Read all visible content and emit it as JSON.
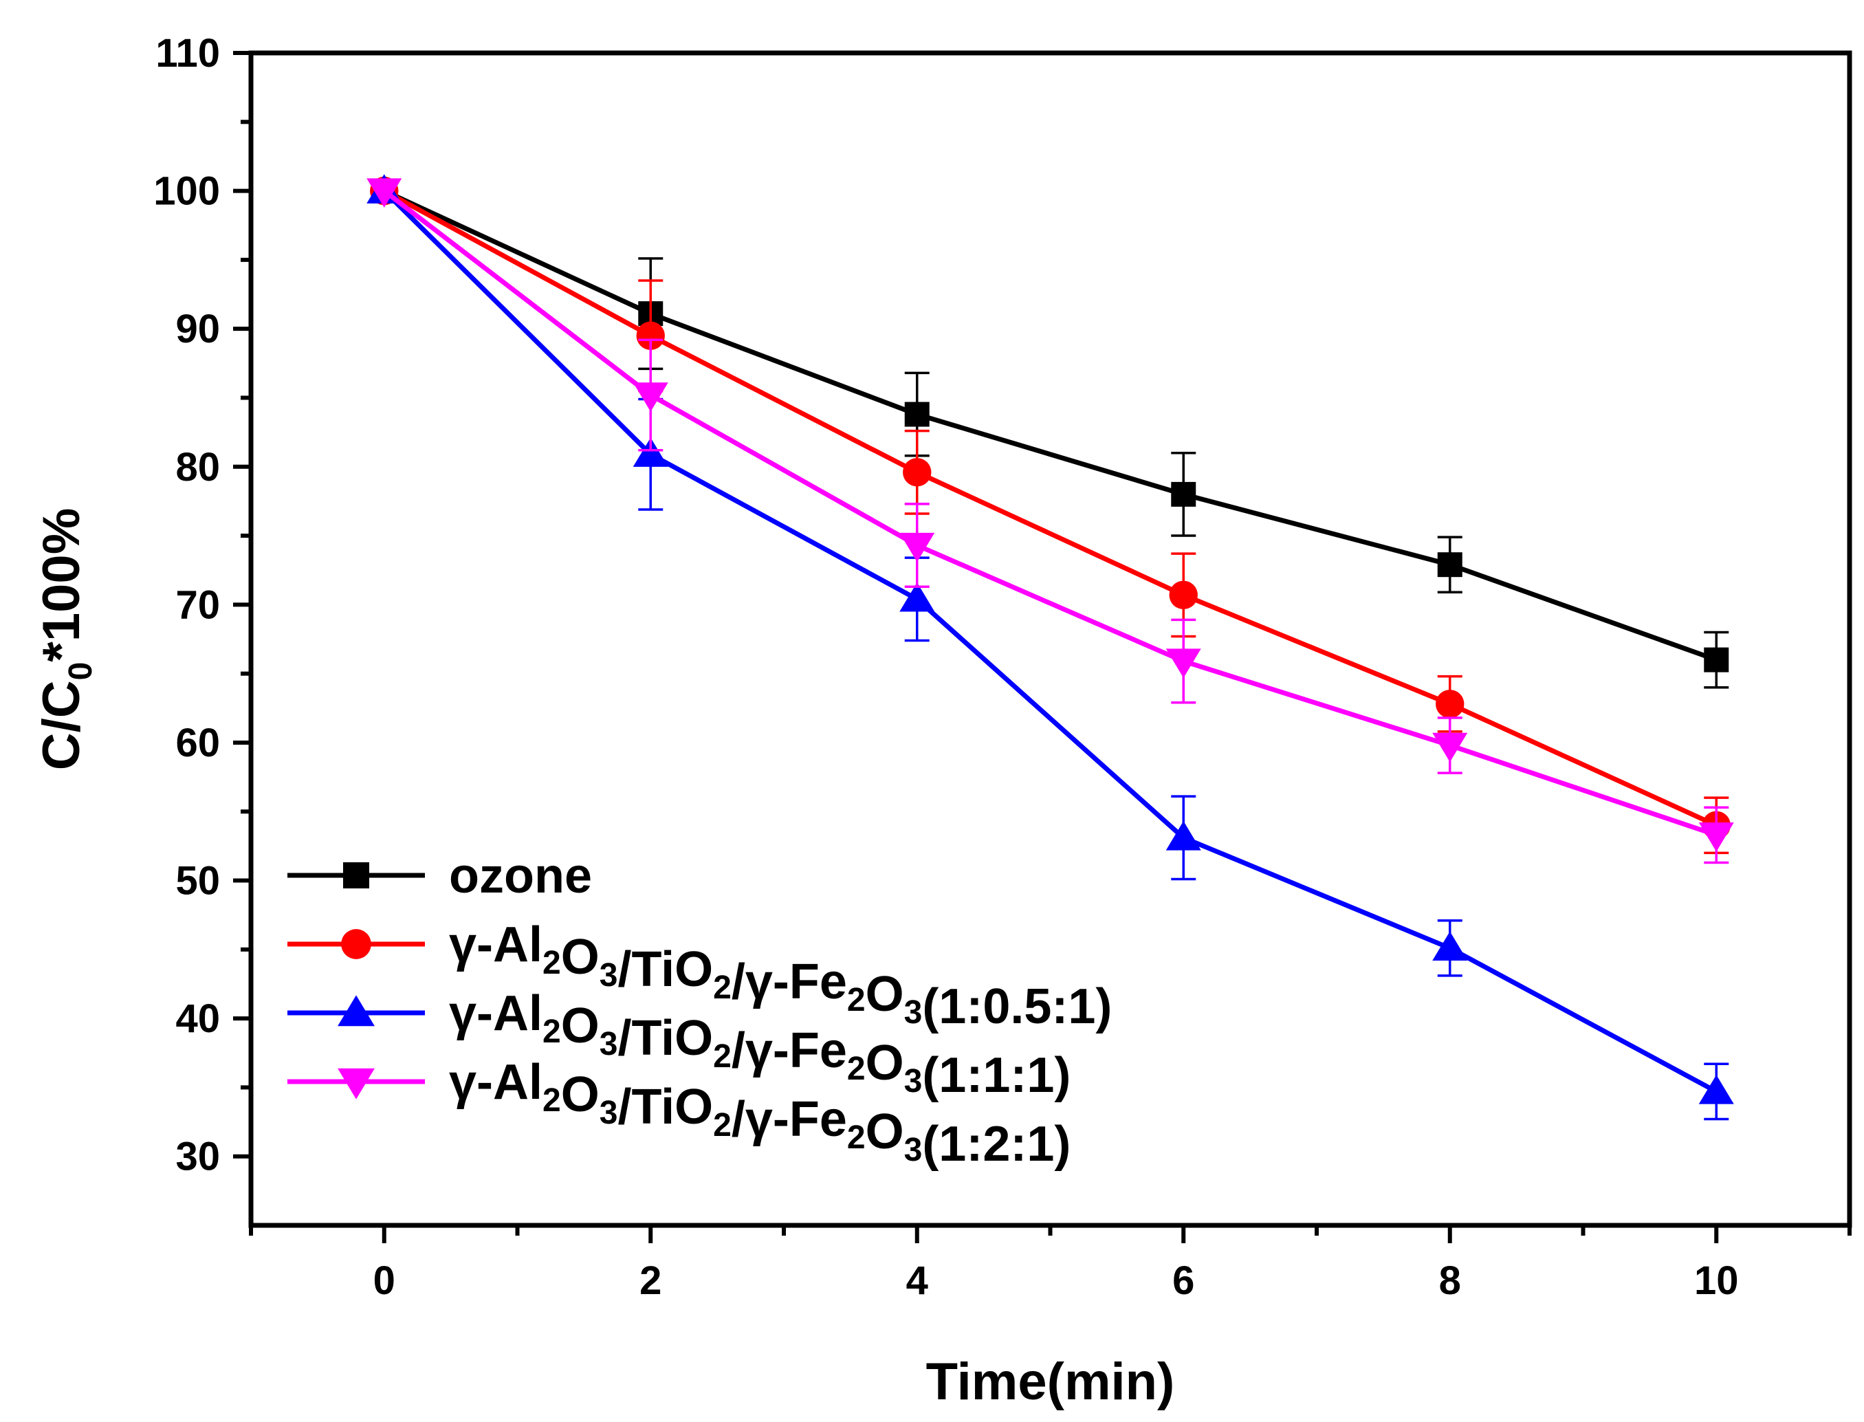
{
  "chart_data": {
    "type": "line",
    "title": "",
    "xlabel": "Time(min)",
    "ylabel": {
      "pre": "C/C",
      "sub": "0",
      "post": "*100%"
    },
    "xlim": [
      -1,
      11
    ],
    "ylim": [
      25,
      110
    ],
    "xticks": [
      0,
      2,
      4,
      6,
      8,
      10
    ],
    "yticks": [
      30,
      40,
      50,
      60,
      70,
      80,
      90,
      100,
      110
    ],
    "x": [
      0,
      2,
      4,
      6,
      8,
      10
    ],
    "legend_position": "bottom-left",
    "series": [
      {
        "name": "ozone",
        "label_parts": [
          {
            "t": "ozone"
          }
        ],
        "color": "#000000",
        "marker": "square",
        "values": [
          100,
          91.1,
          83.8,
          78.0,
          72.9,
          66.0
        ],
        "errors": [
          0,
          4.0,
          3.0,
          3.0,
          2.0,
          2.0
        ]
      },
      {
        "name": "γ-Al2O3/TiO2/γ-Fe2O3(1:0.5:1)",
        "label_parts": [
          {
            "t": "γ-Al"
          },
          {
            "s": "2"
          },
          {
            "t": "O"
          },
          {
            "s": "3"
          },
          {
            "t": "/TiO"
          },
          {
            "s": "2"
          },
          {
            "t": "/γ-Fe"
          },
          {
            "s": "2"
          },
          {
            "t": "O"
          },
          {
            "s": "3"
          },
          {
            "t": "(1:0.5:1)"
          }
        ],
        "color": "#ff0000",
        "marker": "circle",
        "values": [
          100,
          89.5,
          79.6,
          70.7,
          62.8,
          54.0
        ],
        "errors": [
          0,
          4.0,
          3.0,
          3.0,
          2.0,
          2.0
        ]
      },
      {
        "name": "γ-Al2O3/TiO2/γ-Fe2O3(1:1:1)",
        "label_parts": [
          {
            "t": "γ-Al"
          },
          {
            "s": "2"
          },
          {
            "t": "O"
          },
          {
            "s": "3"
          },
          {
            "t": "/TiO"
          },
          {
            "s": "2"
          },
          {
            "t": "/γ-Fe"
          },
          {
            "s": "2"
          },
          {
            "t": "O"
          },
          {
            "s": "3"
          },
          {
            "t": "(1:1:1)"
          }
        ],
        "color": "#0000ff",
        "marker": "triangle-up",
        "values": [
          100,
          80.9,
          70.4,
          53.1,
          45.1,
          34.7
        ],
        "errors": [
          0,
          4.0,
          3.0,
          3.0,
          2.0,
          2.0
        ]
      },
      {
        "name": "γ-Al2O3/TiO2/γ-Fe2O3(1:2:1)",
        "label_parts": [
          {
            "t": "γ-Al"
          },
          {
            "s": "2"
          },
          {
            "t": "O"
          },
          {
            "s": "3"
          },
          {
            "t": "/TiO"
          },
          {
            "s": "2"
          },
          {
            "t": "/γ-Fe"
          },
          {
            "s": "2"
          },
          {
            "t": "O"
          },
          {
            "s": "3"
          },
          {
            "t": "(1:2:1)"
          }
        ],
        "color": "#ff00ff",
        "marker": "triangle-down",
        "values": [
          100,
          85.2,
          74.3,
          65.9,
          59.8,
          53.3
        ],
        "errors": [
          0,
          4.0,
          3.0,
          3.0,
          2.0,
          2.0
        ]
      }
    ]
  }
}
